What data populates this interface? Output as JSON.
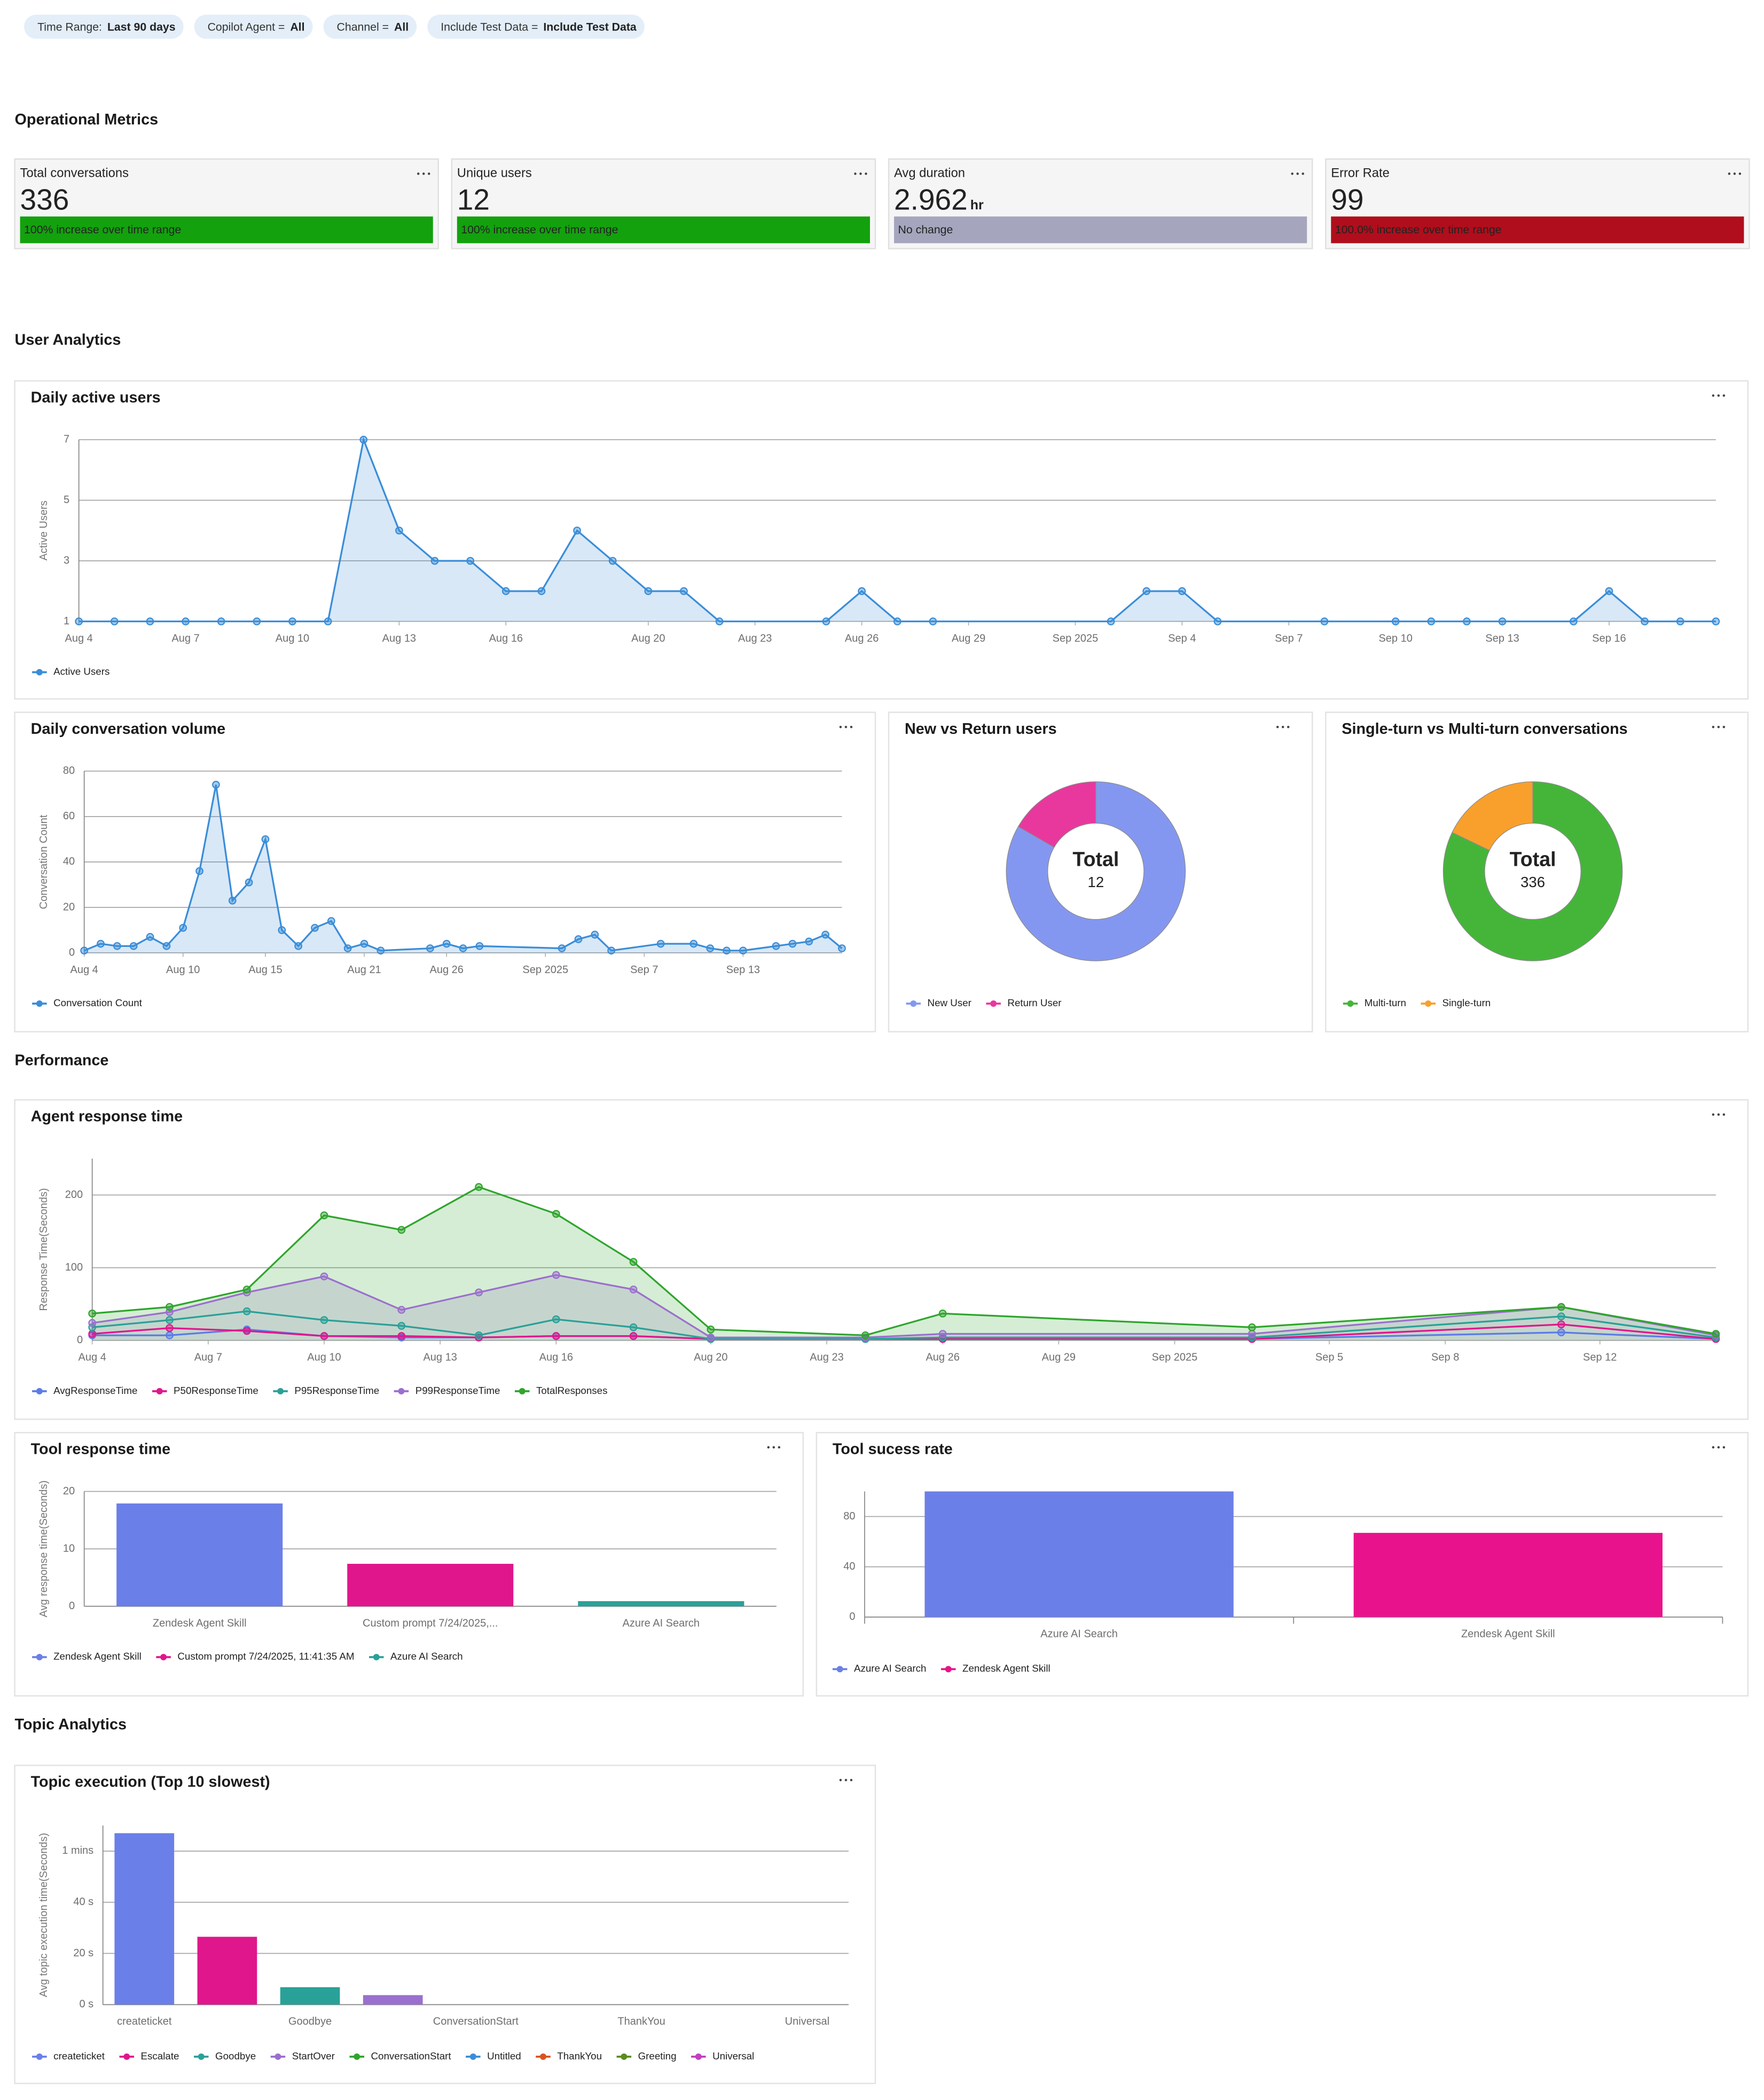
{
  "filters": [
    {
      "label": "Time Range:",
      "value": "Last 90 days"
    },
    {
      "label": "Copilot Agent =",
      "value": "All"
    },
    {
      "label": "Channel =",
      "value": "All"
    },
    {
      "label": "Include Test Data =",
      "value": "Include Test Data"
    }
  ],
  "sections": [
    "Operational Metrics",
    "User Analytics",
    "Performance",
    "Topic Analytics"
  ],
  "kpis": [
    {
      "title": "Total conversations",
      "value": 336,
      "change": "100% increase over time range",
      "color": "#13a10e",
      "text_color": "#1a1a1a"
    },
    {
      "title": "Unique users",
      "value": 12,
      "change": "100% increase over time range",
      "color": "#13a10e",
      "text_color": "#1a1a1a"
    },
    {
      "title": "Avg duration",
      "value": 2.962,
      "unit": "hr",
      "change": "No change",
      "color": "#a5a6bd",
      "text_color": "#1a1a1a"
    },
    {
      "title": "Error Rate",
      "value": 99,
      "change": "100.0% increase over time range",
      "color": "#b00e1c",
      "text_color": "#ffffff"
    }
  ],
  "chart_data": [
    {
      "type": "line",
      "title": "Daily active users",
      "y_label": "Active Users",
      "x": [
        "Aug 4",
        "Aug 5",
        "Aug 6",
        "Aug 7",
        "Aug 8",
        "Aug 9",
        "Aug 10",
        "Aug 11",
        "Aug 12",
        "Aug 13",
        "Aug 14",
        "Aug 15",
        "Aug 16",
        "Aug 17",
        "Aug 18",
        "Aug 19",
        "Aug 20",
        "Aug 21",
        "Aug 22",
        "Aug 25",
        "Aug 26",
        "Aug 27",
        "Aug 28",
        "Sep 2",
        "Sep 3",
        "Sep 4",
        "Sep 5",
        "Sep 8",
        "Sep 10",
        "Sep 11",
        "Sep 12",
        "Sep 13",
        "Sep 15",
        "Sep 16",
        "Sep 17",
        "Sep 18",
        "Sep 19"
      ],
      "series": [
        {
          "name": "Active Users",
          "color": "#3a8dd8",
          "area": true,
          "values": [
            1,
            1,
            1,
            1,
            1,
            1,
            1,
            1,
            7,
            4,
            3,
            3,
            2,
            2,
            4,
            3,
            2,
            2,
            1,
            1,
            2,
            1,
            1,
            1,
            2,
            2,
            1,
            1,
            1,
            1,
            1,
            1,
            1,
            2,
            1,
            1,
            1
          ]
        }
      ],
      "xlim": [
        "Aug 4",
        "Sep 19"
      ],
      "xticks": [
        "Aug 4",
        "Aug 7",
        "Aug 10",
        "Aug 13",
        "Aug 16",
        "Aug 20",
        "Aug 23",
        "Aug 26",
        "Aug 29",
        "Sep 2025",
        "Sep 4",
        "Sep 7",
        "Sep 10",
        "Sep 13",
        "Sep 16"
      ],
      "ylim": [
        1,
        7
      ],
      "yticks": [
        1,
        3,
        5,
        7
      ],
      "grid": true,
      "legend": "bottom-left"
    },
    {
      "type": "line",
      "title": "Daily conversation volume",
      "y_label": "Conversation Count",
      "x": [
        "Aug 4",
        "Aug 5",
        "Aug 6",
        "Aug 7",
        "Aug 8",
        "Aug 9",
        "Aug 10",
        "Aug 11",
        "Aug 12",
        "Aug 13",
        "Aug 14",
        "Aug 15",
        "Aug 16",
        "Aug 17",
        "Aug 18",
        "Aug 19",
        "Aug 20",
        "Aug 21",
        "Aug 22",
        "Aug 25",
        "Aug 26",
        "Aug 27",
        "Aug 28",
        "Sep 2",
        "Sep 3",
        "Sep 4",
        "Sep 5",
        "Sep 8",
        "Sep 10",
        "Sep 11",
        "Sep 12",
        "Sep 13",
        "Sep 15",
        "Sep 16",
        "Sep 17",
        "Sep 18",
        "Sep 19"
      ],
      "series": [
        {
          "name": "Conversation Count",
          "color": "#3a8dd8",
          "area": true,
          "values": [
            1,
            4,
            3,
            3,
            7,
            3,
            11,
            36,
            74,
            23,
            31,
            50,
            10,
            3,
            11,
            14,
            2,
            4,
            1,
            2,
            4,
            2,
            3,
            2,
            6,
            8,
            1,
            4,
            4,
            2,
            1,
            1,
            3,
            4,
            5,
            8,
            2
          ]
        }
      ],
      "xlim": [
        "Aug 4",
        "Sep 19"
      ],
      "xticks": [
        "Aug 4",
        "Aug 10",
        "Aug 15",
        "Aug 21",
        "Aug 26",
        "Sep 2025",
        "Sep 7",
        "Sep 13"
      ],
      "ylim": [
        0,
        80
      ],
      "yticks": [
        0,
        20,
        40,
        60,
        80
      ],
      "grid": true,
      "legend": "bottom-left"
    },
    {
      "type": "pie",
      "donut": true,
      "title": "New vs Return users",
      "categories": [
        "New User",
        "Return User"
      ],
      "values": [
        10,
        2
      ],
      "colors": [
        "#8497f0",
        "#e8389e"
      ],
      "center_label": "Total",
      "total": 12,
      "legend": "bottom-left"
    },
    {
      "type": "pie",
      "donut": true,
      "title": "Single-turn vs Multi-turn conversations",
      "categories": [
        "Multi-turn",
        "Single-turn"
      ],
      "values": [
        276,
        60
      ],
      "colors": [
        "#45b53a",
        "#f9a02c"
      ],
      "center_label": "Total",
      "total": 336,
      "legend": "bottom-left"
    },
    {
      "type": "line",
      "title": "Agent response time",
      "y_label": "Response Time(Seconds)",
      "x": [
        "Aug 4",
        "Aug 6",
        "Aug 8",
        "Aug 10",
        "Aug 12",
        "Aug 14",
        "Aug 16",
        "Aug 18",
        "Aug 20",
        "Aug 24",
        "Aug 26",
        "Sep 3",
        "Sep 11",
        "Sep 15"
      ],
      "series": [
        {
          "name": "AvgResponseTime",
          "color": "#5b7be8",
          "values": [
            7,
            7,
            15,
            6,
            4,
            4,
            6,
            6,
            2,
            2,
            2,
            2,
            11,
            2
          ]
        },
        {
          "name": "P50ResponseTime",
          "color": "#e0168c",
          "values": [
            9,
            17,
            13,
            6,
            6,
            4,
            6,
            6,
            2,
            2,
            2,
            2,
            22,
            2
          ]
        },
        {
          "name": "P95ResponseTime",
          "color": "#2aa198",
          "values": [
            18,
            28,
            40,
            28,
            20,
            7,
            29,
            18,
            2,
            2,
            4,
            4,
            33,
            4
          ]
        },
        {
          "name": "P99ResponseTime",
          "color": "#9b6fce",
          "area": true,
          "values": [
            24,
            39,
            66,
            88,
            42,
            66,
            90,
            70,
            4,
            4,
            9,
            9,
            46,
            7
          ]
        },
        {
          "name": "TotalResponses",
          "color": "#2fa52c",
          "area": true,
          "values": [
            37,
            46,
            70,
            172,
            152,
            211,
            174,
            108,
            15,
            7,
            37,
            18,
            46,
            9
          ]
        }
      ],
      "xlim": [
        "Aug 4",
        "Sep 15"
      ],
      "xticks": [
        "Aug 4",
        "Aug 7",
        "Aug 10",
        "Aug 13",
        "Aug 16",
        "Aug 20",
        "Aug 23",
        "Aug 26",
        "Aug 29",
        "Sep 2025",
        "Sep 5",
        "Sep 8",
        "Sep 12"
      ],
      "ylim": [
        0,
        250
      ],
      "yticks": [
        0,
        100,
        200
      ],
      "grid": true,
      "legend": "bottom-left"
    },
    {
      "type": "bar",
      "title": "Tool response time",
      "y_label": "Avg response time(Seconds)",
      "categories": [
        "Zendesk Agent Skill",
        "Custom prompt 7/24/2025, 11:41:35 AM",
        "Azure AI Search"
      ],
      "x_tick_labels": [
        "Zendesk Agent Skill",
        "Custom prompt 7/24/2025,...",
        "Azure AI Search"
      ],
      "values": [
        17.9,
        7.4,
        0.9
      ],
      "colors": [
        "#6b7fe8",
        "#e0168c",
        "#2aa198"
      ],
      "ylim": [
        0,
        20
      ],
      "yticks": [
        0,
        10,
        20
      ],
      "grid": true,
      "legend": "bottom-left"
    },
    {
      "type": "bar",
      "title": "Tool sucess rate",
      "categories": [
        "Azure AI Search",
        "Zendesk Agent Skill"
      ],
      "values": [
        100,
        67
      ],
      "colors": [
        "#6b7fe8",
        "#e8138c"
      ],
      "ylim": [
        0,
        100
      ],
      "yticks": [
        0,
        40,
        80
      ],
      "grid": true,
      "legend": "bottom-left"
    },
    {
      "type": "bar",
      "title": "Topic execution (Top 10 slowest)",
      "y_label": "Avg topic execution time(Seconds)",
      "categories": [
        "createticket",
        "Escalate",
        "Goodbye",
        "StartOver",
        "ConversationStart",
        "Untitled",
        "ThankYou",
        "Greeting",
        "Universal"
      ],
      "x_tick_labels": [
        "createticket",
        null,
        "Goodbye",
        null,
        "ConversationStart",
        null,
        "ThankYou",
        null,
        "Universal"
      ],
      "values": [
        67,
        26.5,
        6.8,
        3.7,
        0,
        0,
        0,
        0,
        0
      ],
      "colors": [
        "#6b7fe8",
        "#e0168c",
        "#2aa198",
        "#9b6fce",
        "#2fa52c",
        "#3a8dd8",
        "#d9531e",
        "#5b8c1e",
        "#c040c0"
      ],
      "ylim": [
        0,
        70
      ],
      "yticks": [
        {
          "value": 0,
          "label": "0 s"
        },
        {
          "value": 20,
          "label": "20 s"
        },
        {
          "value": 40,
          "label": "40 s"
        },
        {
          "value": 60,
          "label": "1 mins"
        }
      ],
      "grid": true,
      "legend": "bottom-left"
    }
  ]
}
